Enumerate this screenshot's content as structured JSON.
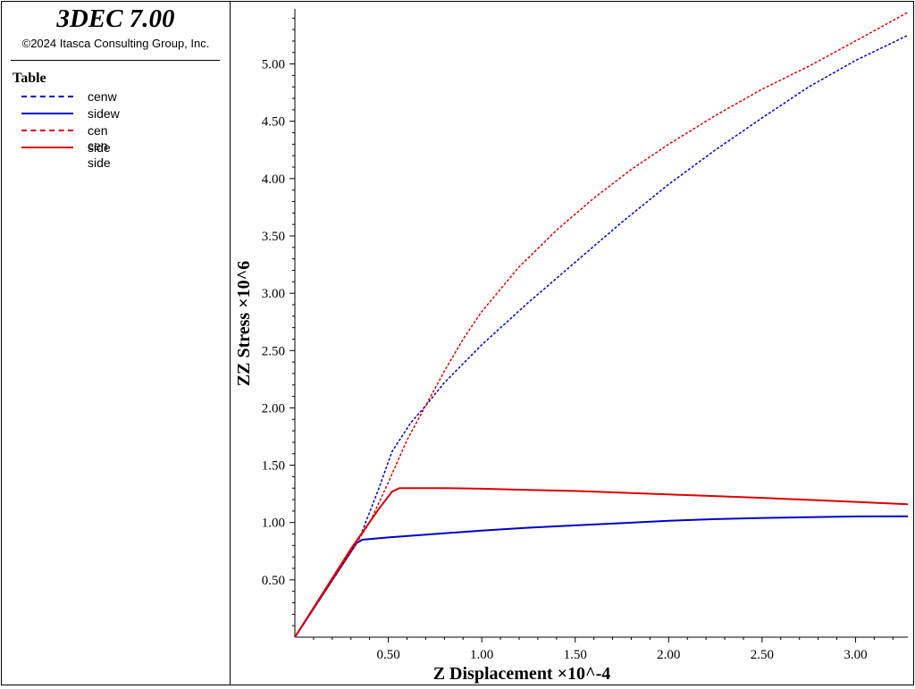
{
  "app": {
    "title": "3DEC 7.00",
    "copyright": "©2024 Itasca Consulting Group, Inc."
  },
  "legend": {
    "heading": "Table",
    "items": [
      {
        "label": "cenw",
        "color": "#0000cc",
        "style": "dashed"
      },
      {
        "label": "sidew",
        "color": "#0000cc",
        "style": "solid"
      },
      {
        "label": "cen cen",
        "color": "#dd0000",
        "style": "dashed"
      },
      {
        "label": "side side",
        "color": "#dd0000",
        "style": "solid"
      }
    ]
  },
  "chart_data": {
    "type": "line",
    "xlabel": "Z Displacement ×10^-4",
    "ylabel": "ZZ Stress ×10^6",
    "xlim": [
      0,
      3.28
    ],
    "ylim": [
      0,
      5.48
    ],
    "xticks": [
      "0.50",
      "1.00",
      "1.50",
      "2.00",
      "2.50",
      "3.00"
    ],
    "yticks": [
      "0.50",
      "1.00",
      "1.50",
      "2.00",
      "2.50",
      "3.00",
      "3.50",
      "4.00",
      "4.50",
      "5.00"
    ],
    "grid": false,
    "legend_placement": "left panel",
    "series": [
      {
        "name": "cenw",
        "color": "#0000cc",
        "dashed": true,
        "points": [
          [
            0,
            0
          ],
          [
            0.2,
            0.5
          ],
          [
            0.35,
            0.88
          ],
          [
            0.45,
            1.3
          ],
          [
            0.52,
            1.62
          ],
          [
            0.62,
            1.87
          ],
          [
            0.7,
            2.02
          ],
          [
            0.8,
            2.22
          ],
          [
            1.0,
            2.55
          ],
          [
            1.25,
            2.92
          ],
          [
            1.5,
            3.27
          ],
          [
            1.75,
            3.62
          ],
          [
            2.0,
            3.95
          ],
          [
            2.25,
            4.25
          ],
          [
            2.5,
            4.53
          ],
          [
            2.75,
            4.8
          ],
          [
            3.0,
            5.03
          ],
          [
            3.28,
            5.25
          ]
        ]
      },
      {
        "name": "sidew",
        "color": "#0000cc",
        "dashed": false,
        "points": [
          [
            0,
            0
          ],
          [
            0.33,
            0.82
          ],
          [
            0.36,
            0.85
          ],
          [
            0.5,
            0.87
          ],
          [
            0.75,
            0.9
          ],
          [
            1.0,
            0.93
          ],
          [
            1.25,
            0.955
          ],
          [
            1.5,
            0.975
          ],
          [
            1.75,
            0.995
          ],
          [
            2.0,
            1.015
          ],
          [
            2.25,
            1.03
          ],
          [
            2.5,
            1.04
          ],
          [
            2.75,
            1.047
          ],
          [
            3.0,
            1.053
          ],
          [
            3.28,
            1.055
          ]
        ]
      },
      {
        "name": "cen cen",
        "color": "#dd0000",
        "dashed": true,
        "points": [
          [
            0,
            0
          ],
          [
            0.25,
            0.62
          ],
          [
            0.4,
            1.0
          ],
          [
            0.5,
            1.35
          ],
          [
            0.6,
            1.72
          ],
          [
            0.7,
            2.02
          ],
          [
            0.8,
            2.32
          ],
          [
            0.9,
            2.6
          ],
          [
            1.0,
            2.84
          ],
          [
            1.2,
            3.23
          ],
          [
            1.4,
            3.55
          ],
          [
            1.6,
            3.83
          ],
          [
            1.8,
            4.08
          ],
          [
            2.0,
            4.3
          ],
          [
            2.25,
            4.55
          ],
          [
            2.5,
            4.78
          ],
          [
            2.75,
            4.98
          ],
          [
            3.0,
            5.2
          ],
          [
            3.28,
            5.45
          ]
        ]
      },
      {
        "name": "side side",
        "color": "#dd0000",
        "dashed": false,
        "points": [
          [
            0,
            0
          ],
          [
            0.3,
            0.77
          ],
          [
            0.45,
            1.12
          ],
          [
            0.52,
            1.27
          ],
          [
            0.56,
            1.3
          ],
          [
            0.8,
            1.3
          ],
          [
            1.0,
            1.295
          ],
          [
            1.25,
            1.285
          ],
          [
            1.5,
            1.275
          ],
          [
            2.0,
            1.245
          ],
          [
            2.5,
            1.215
          ],
          [
            3.0,
            1.18
          ],
          [
            3.28,
            1.16
          ]
        ]
      }
    ]
  }
}
